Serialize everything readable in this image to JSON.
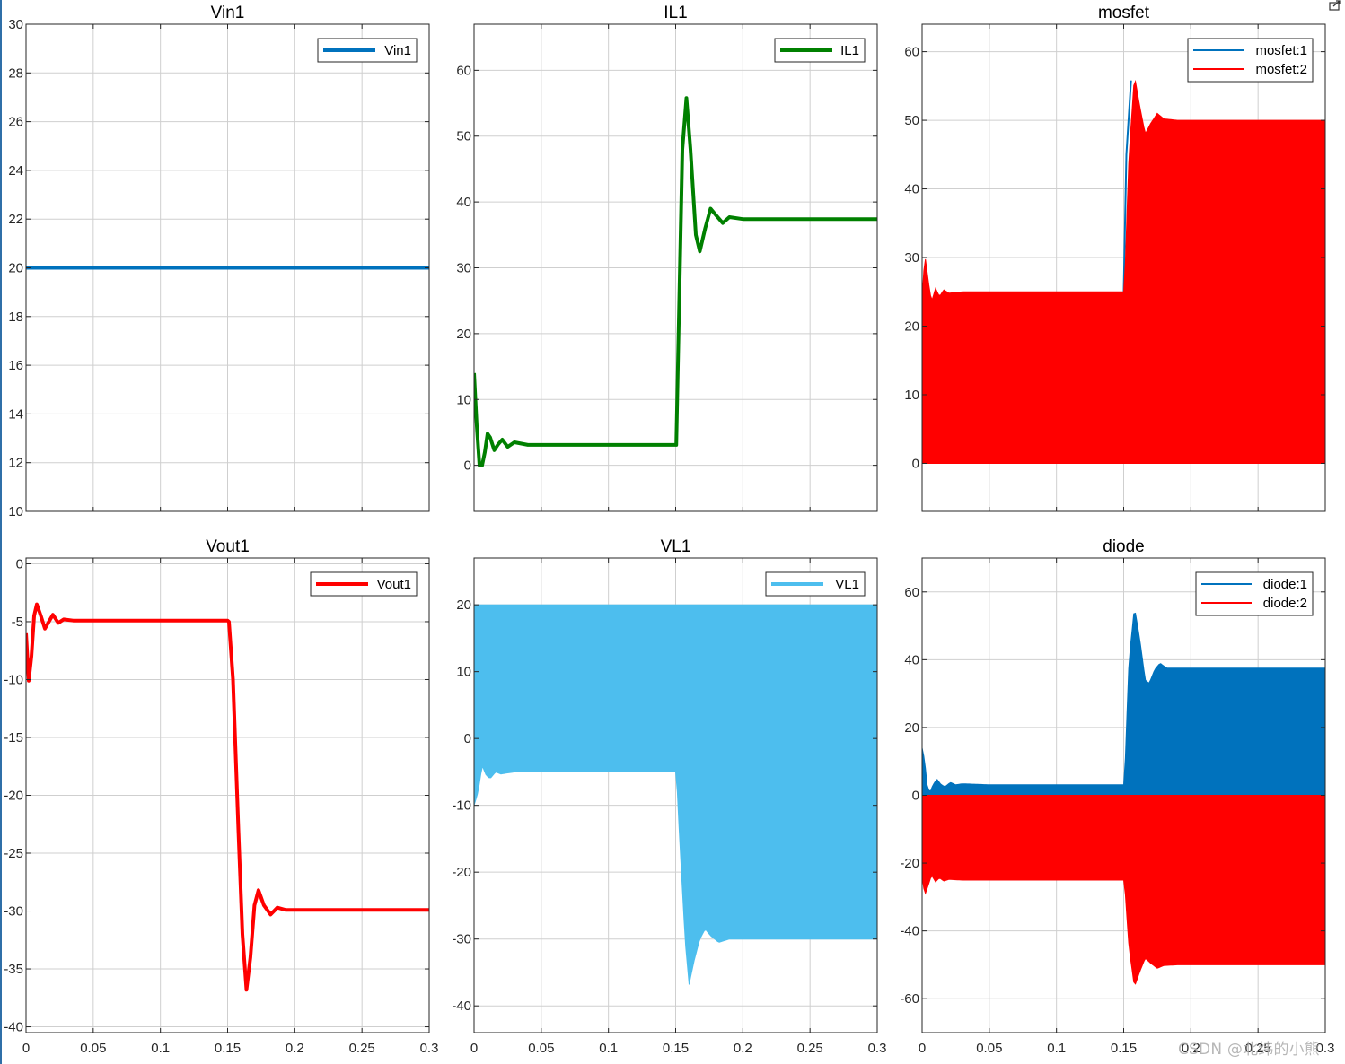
{
  "figure": {
    "watermark": "CSDN @北纬的小熊"
  },
  "chart_data": [
    {
      "id": "vin1",
      "type": "line",
      "title": "Vin1",
      "xlim": [
        0,
        0.3
      ],
      "ylim": [
        10,
        30
      ],
      "xticks": [],
      "xtick_labels": [],
      "yticks": [
        10,
        12,
        14,
        16,
        18,
        20,
        22,
        24,
        26,
        28,
        30
      ],
      "ytick_labels": [
        "10",
        "12",
        "14",
        "16",
        "18",
        "20",
        "22",
        "24",
        "26",
        "28",
        "30"
      ],
      "legend": "top-right",
      "grid": true,
      "series": [
        {
          "name": "Vin1",
          "color": "#0072BD",
          "kind": "line",
          "line_width": 4,
          "points": [
            [
              0,
              20
            ],
            [
              0.3,
              20
            ]
          ]
        }
      ]
    },
    {
      "id": "il1",
      "type": "line",
      "title": "IL1",
      "xlim": [
        0,
        0.3
      ],
      "ylim": [
        -7,
        67
      ],
      "xticks": [],
      "xtick_labels": [],
      "yticks": [
        0,
        10,
        20,
        30,
        40,
        50,
        60
      ],
      "ytick_labels": [
        "0",
        "10",
        "20",
        "30",
        "40",
        "50",
        "60"
      ],
      "legend": "top-right",
      "grid": true,
      "series": [
        {
          "name": "IL1",
          "color": "#008000",
          "kind": "line",
          "line_width": 4,
          "points": [
            [
              0,
              14
            ],
            [
              0.002,
              6
            ],
            [
              0.004,
              0
            ],
            [
              0.006,
              0
            ],
            [
              0.008,
              2
            ],
            [
              0.01,
              4.8
            ],
            [
              0.012,
              4.2
            ],
            [
              0.015,
              2.3
            ],
            [
              0.018,
              3.2
            ],
            [
              0.021,
              3.9
            ],
            [
              0.025,
              2.8
            ],
            [
              0.03,
              3.5
            ],
            [
              0.04,
              3.1
            ],
            [
              0.05,
              3.1
            ],
            [
              0.1,
              3.1
            ],
            [
              0.15,
              3.1
            ],
            [
              0.1505,
              3.1
            ],
            [
              0.155,
              48
            ],
            [
              0.158,
              55.8
            ],
            [
              0.161,
              48
            ],
            [
              0.165,
              35
            ],
            [
              0.168,
              32.5
            ],
            [
              0.172,
              36
            ],
            [
              0.176,
              39
            ],
            [
              0.18,
              38
            ],
            [
              0.185,
              36.8
            ],
            [
              0.19,
              37.7
            ],
            [
              0.2,
              37.4
            ],
            [
              0.25,
              37.4
            ],
            [
              0.3,
              37.4
            ]
          ]
        }
      ]
    },
    {
      "id": "mosfet",
      "type": "line",
      "title": "mosfet",
      "xlim": [
        0,
        0.3
      ],
      "ylim": [
        -7,
        64
      ],
      "xticks": [],
      "xtick_labels": [],
      "yticks": [
        0,
        10,
        20,
        30,
        40,
        50,
        60
      ],
      "ytick_labels": [
        "0",
        "10",
        "20",
        "30",
        "40",
        "50",
        "60"
      ],
      "legend": "top-right",
      "grid": true,
      "series": [
        {
          "name": "mosfet:1",
          "color": "#0072BD",
          "kind": "line",
          "line_width": 2,
          "points": [
            [
              0.15,
              25
            ],
            [
              0.152,
              45
            ],
            [
              0.1555,
              55.8
            ]
          ]
        },
        {
          "name": "mosfet:2",
          "color": "#FF0000",
          "kind": "band",
          "line_width": 2,
          "lower": [
            [
              0,
              0
            ],
            [
              0.3,
              0
            ]
          ],
          "upper": [
            [
              0,
              24
            ],
            [
              0.002,
              30.5
            ],
            [
              0.005,
              26
            ],
            [
              0.007,
              23.5
            ],
            [
              0.01,
              25.5
            ],
            [
              0.013,
              24.3
            ],
            [
              0.016,
              25.3
            ],
            [
              0.02,
              24.8
            ],
            [
              0.03,
              25
            ],
            [
              0.15,
              25
            ],
            [
              0.1505,
              25
            ],
            [
              0.154,
              45
            ],
            [
              0.158,
              56.5
            ],
            [
              0.162,
              52
            ],
            [
              0.166,
              48
            ],
            [
              0.17,
              49.5
            ],
            [
              0.175,
              51
            ],
            [
              0.18,
              50.2
            ],
            [
              0.19,
              50
            ],
            [
              0.3,
              50
            ]
          ]
        }
      ]
    },
    {
      "id": "vout1",
      "type": "line",
      "title": "Vout1",
      "xlim": [
        0,
        0.3
      ],
      "ylim": [
        -40.5,
        0.5
      ],
      "xticks": [
        0,
        0.05,
        0.1,
        0.15,
        0.2,
        0.25,
        0.3
      ],
      "xtick_labels": [
        "0",
        "0.05",
        "0.1",
        "0.15",
        "0.2",
        "0.25",
        "0.3"
      ],
      "yticks": [
        0,
        -5,
        -10,
        -15,
        -20,
        -25,
        -30,
        -35,
        -40
      ],
      "ytick_labels": [
        "0",
        "-5",
        "-10",
        "-15",
        "-20",
        "-25",
        "-30",
        "-35",
        "-40"
      ],
      "legend": "top-right",
      "grid": true,
      "series": [
        {
          "name": "Vout1",
          "color": "#FF0000",
          "kind": "line",
          "line_width": 4,
          "points": [
            [
              0,
              -6
            ],
            [
              0.002,
              -10.1
            ],
            [
              0.004,
              -8
            ],
            [
              0.006,
              -4.5
            ],
            [
              0.008,
              -3.5
            ],
            [
              0.011,
              -4.5
            ],
            [
              0.014,
              -5.6
            ],
            [
              0.017,
              -5
            ],
            [
              0.02,
              -4.4
            ],
            [
              0.024,
              -5.1
            ],
            [
              0.028,
              -4.8
            ],
            [
              0.035,
              -4.9
            ],
            [
              0.05,
              -4.9
            ],
            [
              0.1,
              -4.9
            ],
            [
              0.15,
              -4.9
            ],
            [
              0.151,
              -5
            ],
            [
              0.154,
              -10
            ],
            [
              0.158,
              -23
            ],
            [
              0.161,
              -32
            ],
            [
              0.164,
              -36.8
            ],
            [
              0.167,
              -34
            ],
            [
              0.17,
              -29.5
            ],
            [
              0.173,
              -28.2
            ],
            [
              0.177,
              -29.5
            ],
            [
              0.182,
              -30.3
            ],
            [
              0.187,
              -29.7
            ],
            [
              0.193,
              -29.9
            ],
            [
              0.2,
              -29.9
            ],
            [
              0.3,
              -29.9
            ]
          ]
        }
      ]
    },
    {
      "id": "vl1",
      "type": "line",
      "title": "VL1",
      "xlim": [
        0,
        0.3
      ],
      "ylim": [
        -44,
        27
      ],
      "xticks": [
        0,
        0.05,
        0.1,
        0.15,
        0.2,
        0.25,
        0.3
      ],
      "xtick_labels": [
        "0",
        "0.05",
        "0.1",
        "0.15",
        "0.2",
        "0.25",
        "0.3"
      ],
      "yticks": [
        20,
        10,
        0,
        -10,
        -20,
        -30,
        -40
      ],
      "ytick_labels": [
        "20",
        "10",
        "0",
        "-10",
        "-20",
        "-30",
        "-40"
      ],
      "legend": "top-right",
      "grid": true,
      "series": [
        {
          "name": "VL1",
          "color": "#4DBEEE",
          "kind": "band",
          "line_width": 4,
          "upper": [
            [
              0,
              20
            ],
            [
              0.3,
              20
            ]
          ],
          "lower": [
            [
              0,
              -10
            ],
            [
              0.003,
              -8
            ],
            [
              0.006,
              -4
            ],
            [
              0.009,
              -5.5
            ],
            [
              0.012,
              -6
            ],
            [
              0.016,
              -5
            ],
            [
              0.02,
              -5.3
            ],
            [
              0.03,
              -5
            ],
            [
              0.15,
              -5
            ],
            [
              0.1505,
              -5
            ],
            [
              0.153,
              -15
            ],
            [
              0.157,
              -30
            ],
            [
              0.16,
              -36.8
            ],
            [
              0.164,
              -33
            ],
            [
              0.168,
              -30
            ],
            [
              0.172,
              -28.5
            ],
            [
              0.176,
              -29.5
            ],
            [
              0.182,
              -30.5
            ],
            [
              0.19,
              -30
            ],
            [
              0.3,
              -30
            ]
          ]
        }
      ]
    },
    {
      "id": "diode",
      "type": "line",
      "title": "diode",
      "xlim": [
        0,
        0.3
      ],
      "ylim": [
        -70,
        70
      ],
      "xticks": [
        0,
        0.05,
        0.1,
        0.15,
        0.2,
        0.25,
        0.3
      ],
      "xtick_labels": [
        "0",
        "0.05",
        "0.1",
        "0.15",
        "0.2",
        "0.25",
        "0.3"
      ],
      "yticks": [
        60,
        40,
        20,
        0,
        -20,
        -40,
        -60
      ],
      "ytick_labels": [
        "60",
        "40",
        "20",
        "0",
        "-20",
        "-40",
        "-60"
      ],
      "legend": "top-right",
      "grid": true,
      "series": [
        {
          "name": "diode:1",
          "color": "#0072BD",
          "kind": "band",
          "line_width": 2,
          "lower": [
            [
              0,
              0
            ],
            [
              0.3,
              0
            ]
          ],
          "upper": [
            [
              0,
              14
            ],
            [
              0.002,
              10
            ],
            [
              0.004,
              2
            ],
            [
              0.006,
              1
            ],
            [
              0.008,
              3
            ],
            [
              0.011,
              4.8
            ],
            [
              0.014,
              3.2
            ],
            [
              0.017,
              2.5
            ],
            [
              0.021,
              3.8
            ],
            [
              0.025,
              3.1
            ],
            [
              0.03,
              3.4
            ],
            [
              0.05,
              3.1
            ],
            [
              0.15,
              3.1
            ],
            [
              0.1505,
              3.1
            ],
            [
              0.154,
              40
            ],
            [
              0.158,
              55.5
            ],
            [
              0.162,
              46
            ],
            [
              0.166,
              34
            ],
            [
              0.169,
              33
            ],
            [
              0.173,
              37
            ],
            [
              0.177,
              39
            ],
            [
              0.182,
              37.5
            ],
            [
              0.19,
              37.5
            ],
            [
              0.3,
              37.5
            ]
          ]
        },
        {
          "name": "diode:2",
          "color": "#FF0000",
          "kind": "band",
          "line_width": 2,
          "upper": [
            [
              0,
              0
            ],
            [
              0.3,
              0
            ]
          ],
          "lower": [
            [
              0,
              -24
            ],
            [
              0.002,
              -29.5
            ],
            [
              0.005,
              -26
            ],
            [
              0.007,
              -23.5
            ],
            [
              0.01,
              -25.5
            ],
            [
              0.013,
              -24.3
            ],
            [
              0.016,
              -25.3
            ],
            [
              0.02,
              -24.8
            ],
            [
              0.03,
              -25
            ],
            [
              0.15,
              -25
            ],
            [
              0.1505,
              -25
            ],
            [
              0.154,
              -45
            ],
            [
              0.158,
              -56.5
            ],
            [
              0.162,
              -52
            ],
            [
              0.166,
              -48
            ],
            [
              0.17,
              -49.5
            ],
            [
              0.175,
              -51
            ],
            [
              0.18,
              -50.2
            ],
            [
              0.19,
              -50
            ],
            [
              0.3,
              -50
            ]
          ]
        }
      ]
    }
  ]
}
